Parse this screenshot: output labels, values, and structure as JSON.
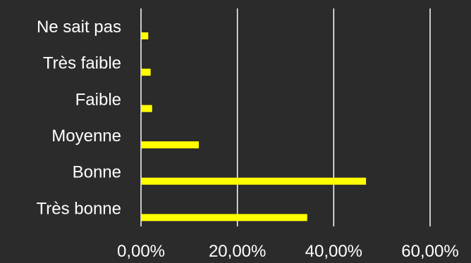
{
  "colors": {
    "background": "#2b2b2b",
    "bar": "#ffff00",
    "text": "#ffffff",
    "grid": "#ffffff"
  },
  "chart_data": {
    "type": "bar",
    "orientation": "horizontal",
    "categories": [
      "Ne sait pas",
      "Très faible",
      "Faible",
      "Moyenne",
      "Bonne",
      "Très bonne"
    ],
    "values": [
      1.5,
      2.0,
      2.3,
      12.0,
      46.7,
      34.5
    ],
    "unit": "%",
    "xlim": [
      0,
      60
    ],
    "ticks": [
      0,
      20,
      40,
      60
    ],
    "tick_labels": [
      "0,00%",
      "20,00%",
      "40,00%",
      "60,00%"
    ],
    "grid": true,
    "legend": "none"
  }
}
